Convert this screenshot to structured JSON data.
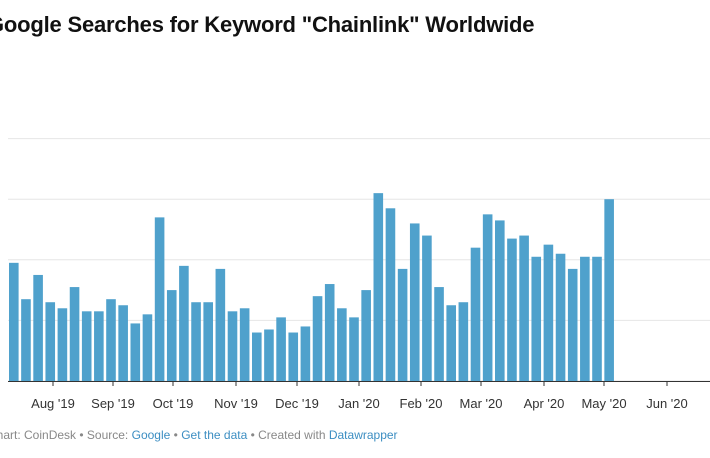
{
  "chart_data": {
    "type": "bar",
    "title": "Google Searches for Keyword \"Chainlink\" Worldwide",
    "grid": true,
    "ylim": [
      0,
      100
    ],
    "tick_labels": [
      "Aug '19",
      "Sep '19",
      "Oct '19",
      "Nov '19",
      "Dec '19",
      "Jan '20",
      "Feb '20",
      "Mar '20",
      "Apr '20",
      "May '20",
      "Jun '20"
    ],
    "values": [
      39,
      27,
      35,
      26,
      24,
      31,
      23,
      23,
      27,
      25,
      19,
      22,
      54,
      30,
      38,
      26,
      26,
      37,
      23,
      24,
      16,
      17,
      21,
      16,
      18,
      28,
      32,
      24,
      21,
      30,
      62,
      57,
      37,
      52,
      48,
      31,
      25,
      26,
      44,
      55,
      53,
      47,
      48,
      41,
      45,
      42,
      37,
      41,
      41,
      60
    ],
    "color": "#4fa1cc"
  },
  "footer": {
    "prefix": "Chart: CoinDesk • Source:",
    "source_link": "Google",
    "sep1": "•",
    "data_link": "Get the data",
    "sep2": "• Created with",
    "tool_link": "Datawrapper"
  }
}
